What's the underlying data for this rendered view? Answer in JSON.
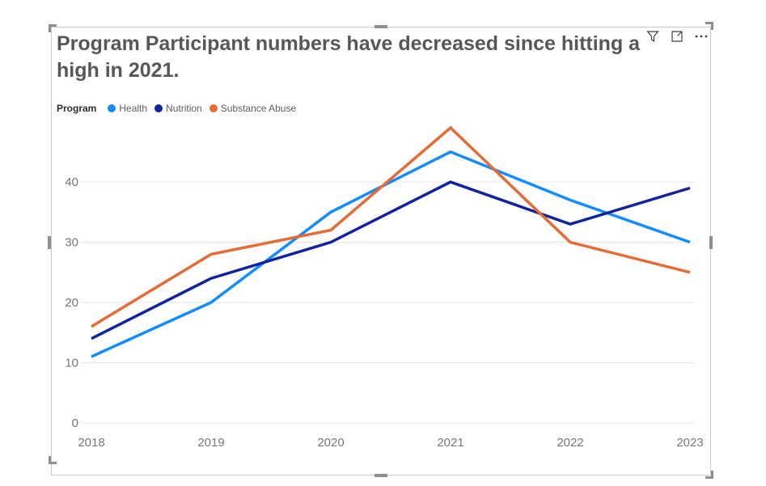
{
  "visual": {
    "title": "Program Participant numbers have decreased since hitting a high in 2021.",
    "header_icons": [
      {
        "name": "filter-icon"
      },
      {
        "name": "focus-mode-icon"
      },
      {
        "name": "more-options-icon"
      }
    ],
    "legend": {
      "title": "Program",
      "items": [
        {
          "label": "Health",
          "color": "#118DFF"
        },
        {
          "label": "Nutrition",
          "color": "#12239E"
        },
        {
          "label": "Substance Abuse",
          "color": "#E66C37"
        }
      ]
    }
  },
  "chart_data": {
    "type": "line",
    "title": "Program Participant numbers have decreased since hitting a high in 2021.",
    "categories": [
      "2018",
      "2019",
      "2020",
      "2021",
      "2022",
      "2023"
    ],
    "series": [
      {
        "name": "Health",
        "color": "#118DFF",
        "values": [
          11,
          20,
          35,
          45,
          37,
          30
        ]
      },
      {
        "name": "Nutrition",
        "color": "#12239E",
        "values": [
          14,
          24,
          30,
          40,
          33,
          39
        ]
      },
      {
        "name": "Substance Abuse",
        "color": "#E66C37",
        "values": [
          16,
          28,
          32,
          49,
          30,
          25
        ]
      }
    ],
    "ylim": [
      0,
      49
    ],
    "yticks": [
      0,
      10,
      20,
      30,
      40
    ],
    "grid": true,
    "legend_position": "top",
    "xlabel": "",
    "ylabel": ""
  },
  "style": {
    "gridline_color": "#e6e6e6",
    "axis_label_color": "#777777",
    "title_color": "#575757",
    "icon_color": "#3d3d3d"
  }
}
